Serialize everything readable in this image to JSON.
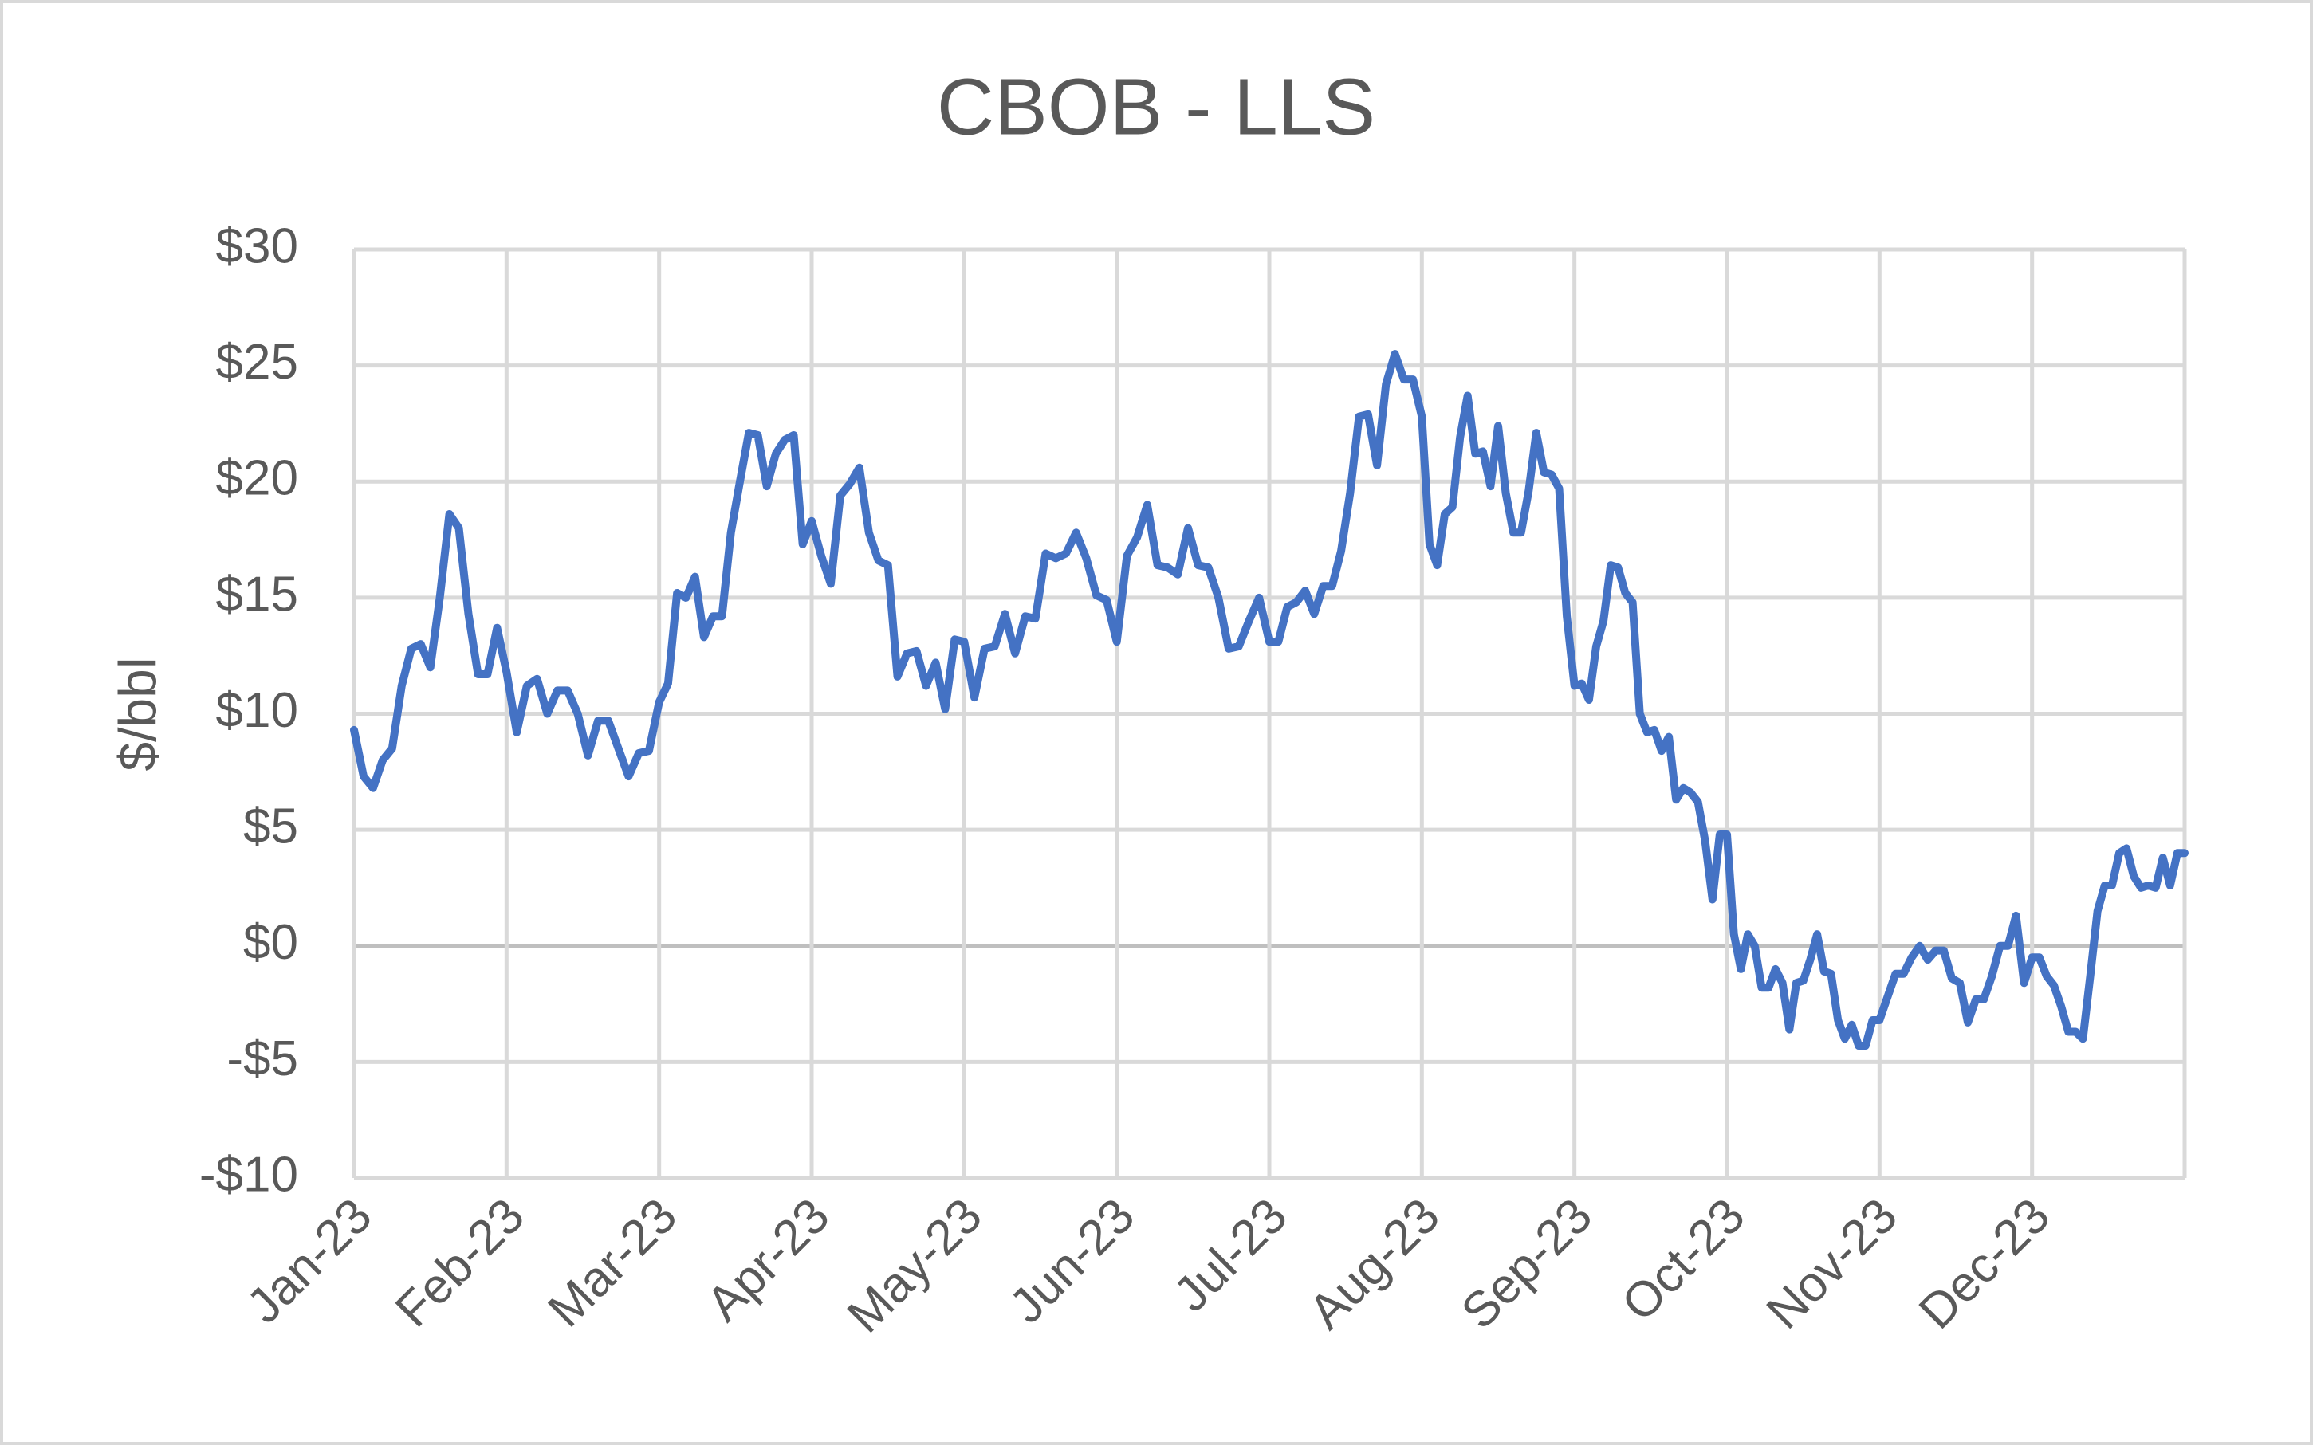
{
  "chart_data": {
    "type": "line",
    "title": "CBOB - LLS",
    "y_label": "$/bbl",
    "color": "#4472c4",
    "grid": true,
    "ylim": [
      -10,
      30
    ],
    "yticks": [
      {
        "value": -10,
        "label": "-$10"
      },
      {
        "value": -5,
        "label": "-$5"
      },
      {
        "value": 0,
        "label": "$0"
      },
      {
        "value": 5,
        "label": "$5"
      },
      {
        "value": 10,
        "label": "$10"
      },
      {
        "value": 15,
        "label": "$15"
      },
      {
        "value": 20,
        "label": "$20"
      },
      {
        "value": 25,
        "label": "$25"
      },
      {
        "value": 30,
        "label": "$30"
      }
    ],
    "categories": [
      "Jan-23",
      null,
      null,
      null,
      null,
      null,
      null,
      null,
      null,
      null,
      null,
      null,
      null,
      null,
      null,
      null,
      "Feb-23",
      null,
      null,
      null,
      null,
      null,
      null,
      null,
      null,
      null,
      null,
      null,
      null,
      null,
      null,
      "Mar-23",
      null,
      null,
      null,
      null,
      null,
      null,
      null,
      null,
      null,
      null,
      null,
      null,
      null,
      null,
      null,
      null,
      "Apr-23",
      null,
      null,
      null,
      null,
      null,
      null,
      null,
      null,
      null,
      null,
      null,
      null,
      null,
      null,
      null,
      "May-23",
      null,
      null,
      null,
      null,
      null,
      null,
      null,
      null,
      null,
      null,
      null,
      null,
      null,
      null,
      "Jun-23",
      null,
      null,
      null,
      null,
      null,
      null,
      null,
      null,
      null,
      null,
      null,
      null,
      null,
      null,
      "Jul-23",
      null,
      null,
      null,
      null,
      null,
      null,
      null,
      null,
      null,
      null,
      null,
      null,
      null,
      null,
      null,
      null,
      "Aug-23",
      null,
      null,
      null,
      null,
      null,
      null,
      null,
      null,
      null,
      null,
      null,
      null,
      null,
      null,
      null,
      null,
      null,
      null,
      null,
      "Sep-23",
      null,
      null,
      null,
      null,
      null,
      null,
      null,
      null,
      null,
      null,
      null,
      null,
      null,
      null,
      null,
      null,
      null,
      null,
      null,
      null,
      "Oct-23",
      null,
      null,
      null,
      null,
      null,
      null,
      null,
      null,
      null,
      null,
      null,
      null,
      null,
      null,
      null,
      null,
      null,
      null,
      null,
      null,
      null,
      "Nov-23",
      null,
      null,
      null,
      null,
      null,
      null,
      null,
      null,
      null,
      null,
      null,
      null,
      null,
      null,
      null,
      null,
      null,
      null,
      "Dec-23",
      null,
      null,
      null,
      null,
      null,
      null,
      null,
      null,
      null,
      null,
      null,
      null,
      null,
      null,
      null,
      null,
      null,
      null,
      null,
      null,
      null
    ],
    "values": [
      9.3,
      7.3,
      6.8,
      8,
      8.5,
      11.2,
      12.8,
      13,
      12,
      15,
      18.6,
      18,
      14.3,
      11.7,
      11.7,
      13.7,
      11.8,
      9.2,
      11.2,
      11.5,
      10,
      11,
      11,
      10,
      8.2,
      9.7,
      9.7,
      8.5,
      7.3,
      8.3,
      8.4,
      10.5,
      11.3,
      15.2,
      15,
      15.9,
      13.3,
      14.2,
      14.2,
      17.8,
      20,
      22.1,
      22,
      19.8,
      21.2,
      21.8,
      22,
      17.3,
      18.3,
      16.8,
      15.6,
      19.4,
      19.9,
      20.6,
      17.8,
      16.6,
      16.4,
      11.6,
      12.6,
      12.7,
      11.2,
      12.2,
      10.2,
      13.2,
      13.1,
      10.7,
      12.8,
      12.9,
      14.3,
      12.6,
      14.2,
      14.1,
      16.9,
      16.7,
      16.9,
      17.8,
      16.7,
      15.1,
      14.9,
      13.1,
      16.8,
      17.6,
      19,
      16.4,
      16.3,
      16,
      18,
      16.4,
      16.3,
      15,
      12.8,
      12.9,
      14,
      15,
      13.1,
      13.1,
      14.6,
      14.8,
      15.3,
      14.3,
      15.5,
      15.5,
      17,
      19.5,
      22.8,
      22.9,
      20.7,
      24.2,
      25.5,
      24.4,
      24.4,
      22.8,
      17.3,
      16.4,
      18.6,
      18.9,
      21.9,
      23.7,
      21.2,
      21.3,
      19.8,
      22.4,
      19.5,
      17.8,
      17.8,
      19.6,
      22.1,
      20.4,
      20.3,
      19.7,
      14.2,
      11.2,
      11.3,
      10.6,
      12.9,
      14,
      16.4,
      16.3,
      15.2,
      14.8,
      10,
      9.2,
      9.3,
      8.4,
      9,
      6.3,
      6.8,
      6.6,
      6.2,
      4.5,
      2,
      4.8,
      4.8,
      0.5,
      -1,
      0.5,
      0,
      -1.8,
      -1.8,
      -1,
      -1.6,
      -3.6,
      -1.6,
      -1.5,
      -0.6,
      0.5,
      -1.1,
      -1.2,
      -3.2,
      -4,
      -3.4,
      -4.3,
      -4.3,
      -3.2,
      -3.2,
      -2.2,
      -1.2,
      -1.2,
      -0.5,
      0,
      -0.6,
      -0.2,
      -0.2,
      -1.4,
      -1.6,
      -3.3,
      -2.3,
      -2.3,
      -1.3,
      0,
      0,
      1.3,
      -1.6,
      -0.5,
      -0.5,
      -1.3,
      -1.7,
      -2.6,
      -3.7,
      -3.7,
      -4,
      -1.3,
      1.5,
      2.6,
      2.6,
      4,
      4.2,
      3,
      2.5,
      2.6,
      2.5,
      3.8,
      2.6,
      4,
      4
    ]
  }
}
